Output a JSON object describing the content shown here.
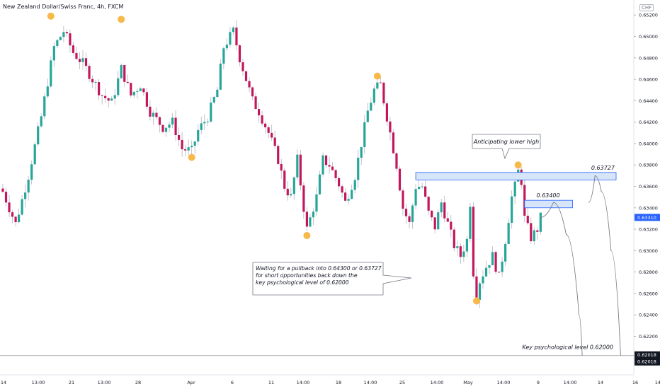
{
  "header": {
    "title": "New Zealand Dollar/Swiss Franc, 4h, FXCM",
    "currency_badge": "CHF"
  },
  "colors": {
    "up": "#26a69a",
    "down": "#c2185b",
    "marker": "#f6b94a",
    "zone_fill": "#d6e6f8",
    "zone_stroke": "#2962ff",
    "last_price_bg": "#2962ff",
    "key_level_bg": "#131722"
  },
  "chart_data": {
    "type": "candlestick",
    "y_axis": {
      "ticks": [
        "0.65200",
        "0.65000",
        "0.64800",
        "0.64600",
        "0.64400",
        "0.64200",
        "0.64000",
        "0.63800",
        "0.63600",
        "0.63400",
        "0.63200",
        "0.63000",
        "0.62800",
        "0.62600",
        "0.62400",
        "0.62200"
      ],
      "range": [
        0.6184,
        0.6534
      ],
      "position": "right"
    },
    "x_axis": {
      "labels": [
        "14",
        "13:00",
        "21",
        "13:00",
        "28",
        "Apr",
        "6",
        "11",
        "14:00",
        "18",
        "14:00",
        "25",
        "14:00",
        "May",
        "14:00",
        "9",
        "14:00",
        "14",
        "16",
        "14:"
      ]
    },
    "price_labels": {
      "last_price": "0.63310",
      "key_level_1": "0.62018",
      "key_level_2": "0.62018"
    },
    "zones": [
      {
        "label": "0.63727",
        "low": 0.6366,
        "high": 0.6373
      },
      {
        "label": "0.63400",
        "low": 0.634,
        "high": 0.6347
      }
    ],
    "key_level": {
      "value": 0.6202
    },
    "annotations": {
      "lower_high": "Anticipating lower high",
      "plan_lines": [
        "Waiting for a pullback into 0.64300 or 0.63727",
        "for short opportunities back down the",
        "key psychological level of 0.62000"
      ],
      "key_level_text": "Key psychological level 0.62000"
    },
    "swing_markers": [
      {
        "x": 15,
        "price": 0.6513,
        "position": "above"
      },
      {
        "x": 37,
        "price": 0.651,
        "position": "above"
      },
      {
        "x": 59,
        "price": 0.6393,
        "position": "below"
      },
      {
        "x": 95,
        "price": 0.632,
        "position": "below"
      },
      {
        "x": 117,
        "price": 0.6457,
        "position": "above"
      },
      {
        "x": 148,
        "price": 0.6259,
        "position": "below"
      },
      {
        "x": 161,
        "price": 0.6374,
        "position": "above"
      }
    ],
    "path": [
      [
        0,
        0.6355
      ],
      [
        4,
        0.6325
      ],
      [
        8,
        0.637
      ],
      [
        12,
        0.6425
      ],
      [
        16,
        0.649
      ],
      [
        19,
        0.6505
      ],
      [
        22,
        0.6485
      ],
      [
        25,
        0.6475
      ],
      [
        28,
        0.646
      ],
      [
        31,
        0.6445
      ],
      [
        34,
        0.6438
      ],
      [
        37,
        0.647
      ],
      [
        40,
        0.6445
      ],
      [
        43,
        0.6455
      ],
      [
        46,
        0.643
      ],
      [
        50,
        0.6415
      ],
      [
        53,
        0.642
      ],
      [
        56,
        0.6395
      ],
      [
        59,
        0.6393
      ],
      [
        61,
        0.6412
      ],
      [
        64,
        0.6425
      ],
      [
        67,
        0.645
      ],
      [
        69,
        0.649
      ],
      [
        72,
        0.6505
      ],
      [
        74,
        0.648
      ],
      [
        76,
        0.646
      ],
      [
        78,
        0.644
      ],
      [
        80,
        0.643
      ],
      [
        83,
        0.641
      ],
      [
        86,
        0.6385
      ],
      [
        88,
        0.636
      ],
      [
        90,
        0.635
      ],
      [
        92,
        0.6385
      ],
      [
        94,
        0.634
      ],
      [
        95,
        0.632
      ],
      [
        98,
        0.635
      ],
      [
        100,
        0.6385
      ],
      [
        102,
        0.638
      ],
      [
        105,
        0.6362
      ],
      [
        107,
        0.6345
      ],
      [
        110,
        0.637
      ],
      [
        112,
        0.64
      ],
      [
        114,
        0.643
      ],
      [
        116,
        0.645
      ],
      [
        118,
        0.6455
      ],
      [
        121,
        0.641
      ],
      [
        123,
        0.638
      ],
      [
        125,
        0.634
      ],
      [
        127,
        0.6325
      ],
      [
        129,
        0.636
      ],
      [
        131,
        0.636
      ],
      [
        133,
        0.6335
      ],
      [
        135,
        0.6322
      ],
      [
        137,
        0.6345
      ],
      [
        139,
        0.6325
      ],
      [
        141,
        0.6305
      ],
      [
        143,
        0.6295
      ],
      [
        145,
        0.631
      ],
      [
        146,
        0.6345
      ],
      [
        147,
        0.628
      ],
      [
        148,
        0.6259
      ],
      [
        149,
        0.6272
      ],
      [
        151,
        0.6285
      ],
      [
        153,
        0.6295
      ],
      [
        155,
        0.6275
      ],
      [
        157,
        0.631
      ],
      [
        159,
        0.635
      ],
      [
        160,
        0.636
      ],
      [
        161,
        0.6374
      ],
      [
        162,
        0.6365
      ],
      [
        163,
        0.633
      ],
      [
        165,
        0.6312
      ],
      [
        167,
        0.632
      ],
      [
        168,
        0.6331
      ]
    ],
    "projections": [
      {
        "points": [
          [
            168,
            0.6331
          ],
          [
            172,
            0.6345
          ],
          [
            176,
            0.6315
          ],
          [
            180,
            0.624
          ],
          [
            181,
            0.6202
          ]
        ]
      },
      {
        "points": [
          [
            183,
            0.6345
          ],
          [
            185,
            0.637
          ],
          [
            187,
            0.6355
          ],
          [
            190,
            0.63
          ],
          [
            193,
            0.6202
          ]
        ]
      }
    ]
  }
}
